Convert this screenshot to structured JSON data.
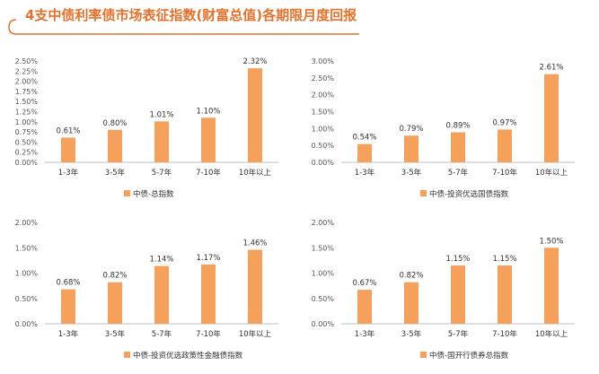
{
  "page": {
    "title": "4支中债利率债市场表征指数(财富总值)各期限月度回报",
    "bar_color": "#f5a05b",
    "accent_color": "#e6712a"
  },
  "chart_data": [
    {
      "type": "bar",
      "categories": [
        "1-3年",
        "3-5年",
        "5-7年",
        "7-10年",
        "10年以上"
      ],
      "series": [
        {
          "name": "中债-总指数",
          "values": [
            0.61,
            0.8,
            1.01,
            1.1,
            2.32
          ],
          "labels": [
            "0.61%",
            "0.80%",
            "1.01%",
            "1.10%",
            "2.32%"
          ]
        }
      ],
      "yticks": [
        "0.00%",
        "0.25%",
        "0.50%",
        "0.75%",
        "1.00%",
        "1.25%",
        "1.50%",
        "1.75%",
        "2.00%",
        "2.25%",
        "2.50%"
      ],
      "ylim": [
        0,
        2.5
      ],
      "legend": "bottom"
    },
    {
      "type": "bar",
      "categories": [
        "1-3年",
        "3-5年",
        "5-7年",
        "7-10年",
        "10年以上"
      ],
      "series": [
        {
          "name": "中债-投资优选国债指数",
          "values": [
            0.54,
            0.79,
            0.89,
            0.97,
            2.61
          ],
          "labels": [
            "0.54%",
            "0.79%",
            "0.89%",
            "0.97%",
            "2.61%"
          ]
        }
      ],
      "yticks": [
        "0.00%",
        "0.50%",
        "1.00%",
        "1.50%",
        "2.00%",
        "2.50%",
        "3.00%"
      ],
      "ylim": [
        0,
        3.0
      ],
      "legend": "bottom"
    },
    {
      "type": "bar",
      "categories": [
        "1-3年",
        "3-5年",
        "5-7年",
        "7-10年",
        "10年以上"
      ],
      "series": [
        {
          "name": "中债-投资优选政策性金融债指数",
          "values": [
            0.68,
            0.82,
            1.14,
            1.17,
            1.46
          ],
          "labels": [
            "0.68%",
            "0.82%",
            "1.14%",
            "1.17%",
            "1.46%"
          ]
        }
      ],
      "yticks": [
        "0.00%",
        "0.50%",
        "1.00%",
        "1.50%",
        "2.00%"
      ],
      "ylim": [
        0,
        2.0
      ],
      "legend": "bottom"
    },
    {
      "type": "bar",
      "categories": [
        "1-3年",
        "3-5年",
        "5-7年",
        "7-10年",
        "10年以上"
      ],
      "series": [
        {
          "name": "中债-国开行债券总指数",
          "values": [
            0.67,
            0.82,
            1.15,
            1.15,
            1.5
          ],
          "labels": [
            "0.67%",
            "0.82%",
            "1.15%",
            "1.15%",
            "1.50%"
          ]
        }
      ],
      "yticks": [
        "0.00%",
        "0.50%",
        "1.00%",
        "1.50%",
        "2.00%"
      ],
      "ylim": [
        0,
        2.0
      ],
      "legend": "bottom"
    }
  ]
}
